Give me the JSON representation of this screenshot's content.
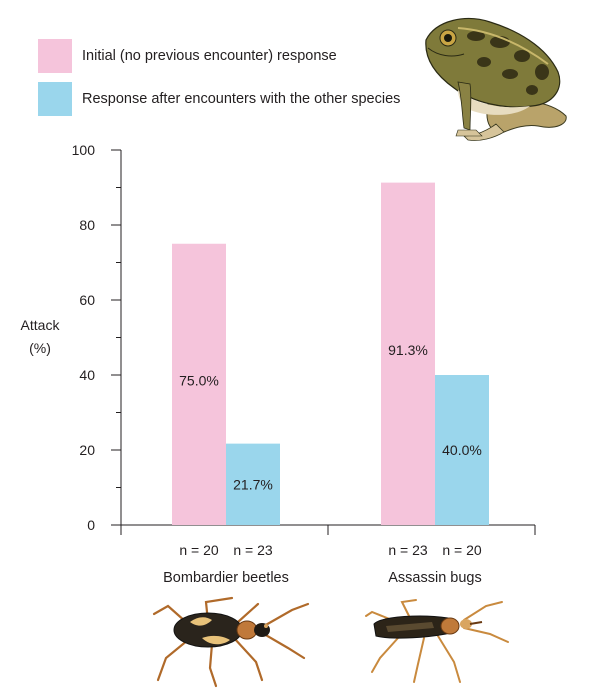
{
  "chart_data": {
    "type": "bar",
    "ylabel_line1": "Attack",
    "ylabel_line2": "(%)",
    "ylim": [
      0,
      100
    ],
    "yticks": [
      0,
      20,
      40,
      60,
      80,
      100
    ],
    "categories": [
      "Bombardier beetles",
      "Assassin bugs"
    ],
    "series": [
      {
        "name": "Initial (no previous encounter) response",
        "color": "#f5c4db",
        "values": [
          75.0,
          91.3
        ],
        "labels": [
          "75.0%",
          "91.3%"
        ],
        "n_labels": [
          "n = 20",
          "n = 23"
        ]
      },
      {
        "name": "Response after encounters with the other species",
        "color": "#9ad6ec",
        "values": [
          21.7,
          40.0
        ],
        "labels": [
          "21.7%",
          "40.0%"
        ],
        "n_labels": [
          "n = 23",
          "n = 20"
        ]
      }
    ],
    "grid": false,
    "legend_position": "top-left"
  },
  "icons": [
    "frog-illustration",
    "bombardier-beetle-illustration",
    "assassin-bug-illustration"
  ]
}
